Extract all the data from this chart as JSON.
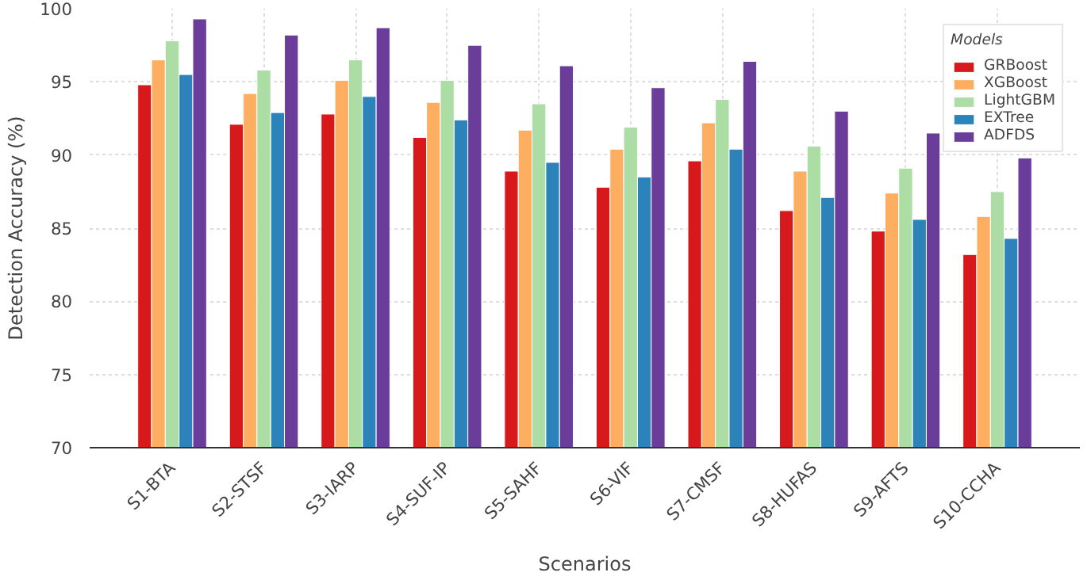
{
  "chart_data": {
    "type": "bar",
    "xlabel": "Scenarios",
    "ylabel": "Detection Accuracy (%)",
    "legend_title": "Models",
    "categories": [
      "S1-BTA",
      "S2-STSF",
      "S3-IARP",
      "S4-SUF-IP",
      "S5-SAHF",
      "S6-VIF",
      "S7-CMSF",
      "S8-HUFAS",
      "S9-AFTS",
      "S10-CCHA"
    ],
    "series": [
      {
        "name": "GRBoost",
        "color": "#d7191c",
        "values": [
          94.8,
          92.1,
          92.8,
          91.2,
          88.9,
          87.8,
          89.6,
          86.2,
          84.8,
          83.2
        ]
      },
      {
        "name": "XGBoost",
        "color": "#fdae61",
        "values": [
          96.5,
          94.2,
          95.1,
          93.6,
          91.7,
          90.4,
          92.2,
          88.9,
          87.4,
          85.8
        ]
      },
      {
        "name": "LightGBM",
        "color": "#abdda4",
        "values": [
          97.8,
          95.8,
          96.5,
          95.1,
          93.5,
          91.9,
          93.8,
          90.6,
          89.1,
          87.5
        ]
      },
      {
        "name": "EXTree",
        "color": "#2b83ba",
        "values": [
          95.5,
          92.9,
          94.0,
          92.4,
          89.5,
          88.5,
          90.4,
          87.1,
          85.6,
          84.3
        ]
      },
      {
        "name": "ADFDS",
        "color": "#6a3d9a",
        "values": [
          99.3,
          98.2,
          98.7,
          97.5,
          96.1,
          94.6,
          96.4,
          93.0,
          91.5,
          89.8
        ]
      }
    ],
    "ylim": [
      70,
      100
    ],
    "yticks": [
      70,
      75,
      80,
      85,
      90,
      95,
      100
    ],
    "grid": true,
    "legend": "top right"
  }
}
